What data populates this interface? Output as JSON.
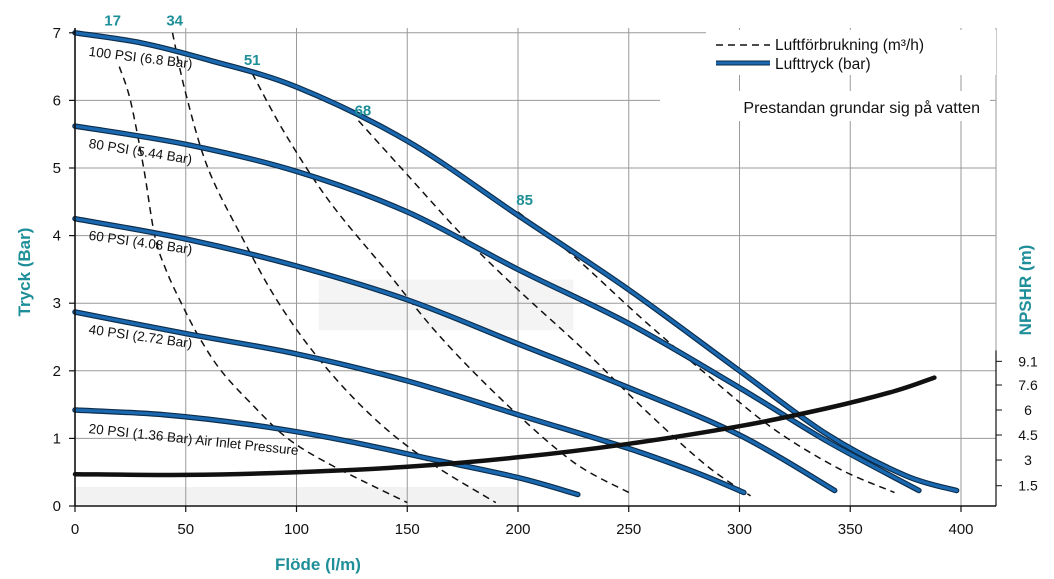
{
  "colors": {
    "teal": "#1e8f99",
    "pressure_line": "#1a69b0",
    "pressure_outline": "#0c2c4a",
    "air_line": "#111111",
    "npshr_line": "#111111",
    "grid": "#9a9a9a"
  },
  "chart_data": {
    "type": "line",
    "xlabel": "Flöde (l/m)",
    "ylabel": "Tryck (Bar)",
    "y2label": "NPSHR (m)",
    "xlim": [
      0,
      400
    ],
    "ylim": [
      0,
      7
    ],
    "x_ticks": [
      "0",
      "50",
      "100",
      "150",
      "200",
      "250",
      "300",
      "350",
      "400"
    ],
    "y_ticks": [
      "0",
      "1",
      "2",
      "3",
      "4",
      "5",
      "6",
      "7"
    ],
    "y2_ticks": [
      {
        "label": "1.5",
        "y": 0.3
      },
      {
        "label": "3",
        "y": 0.68
      },
      {
        "label": "4.5",
        "y": 1.05
      },
      {
        "label": "6",
        "y": 1.42
      },
      {
        "label": "7.6",
        "y": 1.79
      },
      {
        "label": "9.1",
        "y": 2.14
      }
    ],
    "legend": {
      "position": "top-right",
      "entries": [
        {
          "label": "Luftförbrukning (m³/h)",
          "style": "dashed"
        },
        {
          "label": "Lufttryck (bar)",
          "style": "solid"
        }
      ]
    },
    "note": "Prestandan grundar sig på vatten",
    "pressure_series": [
      {
        "name": "100 PSI (6.8 Bar)",
        "points": [
          [
            0,
            7.0
          ],
          [
            30,
            6.85
          ],
          [
            60,
            6.6
          ],
          [
            100,
            6.2
          ],
          [
            150,
            5.4
          ],
          [
            200,
            4.3
          ],
          [
            250,
            3.2
          ],
          [
            300,
            2.0
          ],
          [
            340,
            1.05
          ],
          [
            375,
            0.45
          ],
          [
            398,
            0.23
          ]
        ]
      },
      {
        "name": "80 PSI (5.44 Bar)",
        "points": [
          [
            0,
            5.62
          ],
          [
            50,
            5.35
          ],
          [
            100,
            4.95
          ],
          [
            150,
            4.35
          ],
          [
            200,
            3.5
          ],
          [
            250,
            2.7
          ],
          [
            300,
            1.75
          ],
          [
            340,
            0.95
          ],
          [
            381,
            0.23
          ]
        ]
      },
      {
        "name": "60 PSI (4.08 Bar)",
        "points": [
          [
            0,
            4.25
          ],
          [
            50,
            3.95
          ],
          [
            100,
            3.55
          ],
          [
            150,
            3.05
          ],
          [
            200,
            2.4
          ],
          [
            250,
            1.75
          ],
          [
            300,
            1.05
          ],
          [
            343,
            0.23
          ]
        ]
      },
      {
        "name": "40 PSI (2.72 Bar)",
        "points": [
          [
            0,
            2.87
          ],
          [
            50,
            2.55
          ],
          [
            100,
            2.25
          ],
          [
            150,
            1.85
          ],
          [
            200,
            1.35
          ],
          [
            250,
            0.85
          ],
          [
            280,
            0.5
          ],
          [
            302,
            0.2
          ]
        ]
      },
      {
        "name": "20 PSI (1.36 Bar) Air Inlet Pressure",
        "points": [
          [
            0,
            1.42
          ],
          [
            40,
            1.35
          ],
          [
            80,
            1.2
          ],
          [
            120,
            0.98
          ],
          [
            160,
            0.7
          ],
          [
            200,
            0.42
          ],
          [
            227,
            0.17
          ]
        ]
      }
    ],
    "air_consumption_series": [
      {
        "label": "17",
        "points": [
          [
            20,
            6.5
          ],
          [
            25,
            6.0
          ],
          [
            31,
            5.0
          ],
          [
            36,
            4.0
          ],
          [
            41,
            3.5
          ],
          [
            48,
            3.0
          ],
          [
            56,
            2.5
          ],
          [
            66,
            2.0
          ],
          [
            80,
            1.5
          ],
          [
            96,
            1.0
          ],
          [
            116,
            0.6
          ],
          [
            150,
            0.05
          ]
        ]
      },
      {
        "label": "34",
        "points": [
          [
            44,
            7.0
          ],
          [
            50,
            6.1
          ],
          [
            60,
            5.0
          ],
          [
            75,
            4.0
          ],
          [
            92,
            3.0
          ],
          [
            112,
            2.1
          ],
          [
            135,
            1.3
          ],
          [
            160,
            0.65
          ],
          [
            190,
            0.05
          ]
        ]
      },
      {
        "label": "51",
        "points": [
          [
            80,
            6.4
          ],
          [
            95,
            5.5
          ],
          [
            115,
            4.5
          ],
          [
            140,
            3.5
          ],
          [
            165,
            2.5
          ],
          [
            195,
            1.5
          ],
          [
            225,
            0.65
          ],
          [
            250,
            0.2
          ]
        ]
      },
      {
        "label": "68",
        "points": [
          [
            128,
            5.7
          ],
          [
            150,
            4.9
          ],
          [
            175,
            4.0
          ],
          [
            200,
            3.2
          ],
          [
            230,
            2.3
          ],
          [
            258,
            1.4
          ],
          [
            285,
            0.6
          ],
          [
            305,
            0.15
          ]
        ]
      },
      {
        "label": "85",
        "points": [
          [
            200,
            4.35
          ],
          [
            225,
            3.7
          ],
          [
            255,
            2.8
          ],
          [
            285,
            1.95
          ],
          [
            315,
            1.15
          ],
          [
            345,
            0.55
          ],
          [
            370,
            0.2
          ]
        ]
      }
    ],
    "npshr_curve": {
      "points": [
        [
          0,
          0.47
        ],
        [
          50,
          0.46
        ],
        [
          100,
          0.5
        ],
        [
          150,
          0.58
        ],
        [
          200,
          0.72
        ],
        [
          250,
          0.92
        ],
        [
          300,
          1.18
        ],
        [
          340,
          1.45
        ],
        [
          370,
          1.7
        ],
        [
          388,
          1.9
        ]
      ]
    }
  }
}
